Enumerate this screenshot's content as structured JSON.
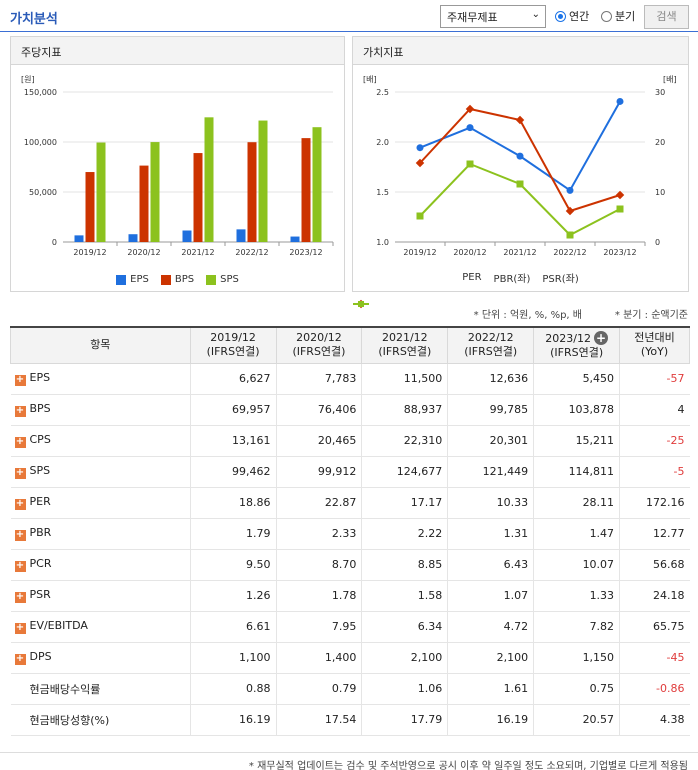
{
  "header": {
    "title": "가치분석",
    "select_value": "주재무제표",
    "radio_annual": "연간",
    "radio_quarter": "분기",
    "search_button": "검색"
  },
  "left_panel_title": "주당지표",
  "right_panel_title": "가치지표",
  "chart_data": [
    {
      "type": "bar",
      "categories": [
        "2019/12",
        "2020/12",
        "2021/12",
        "2022/12",
        "2023/12"
      ],
      "series": [
        {
          "name": "EPS",
          "values": [
            6627,
            7783,
            11500,
            12636,
            5450
          ],
          "color": "#1f6fde"
        },
        {
          "name": "BPS",
          "values": [
            69957,
            76406,
            88937,
            99785,
            103878
          ],
          "color": "#cc3300"
        },
        {
          "name": "SPS",
          "values": [
            99462,
            99912,
            124677,
            121449,
            114811
          ],
          "color": "#8cc21e"
        }
      ],
      "ylabel": "[원]",
      "ylim": [
        0,
        150000
      ],
      "yticks": [
        "0",
        "50,000",
        "100,000",
        "150,000"
      ],
      "grid": true,
      "legend": "bottom"
    },
    {
      "type": "line",
      "categories": [
        "2019/12",
        "2020/12",
        "2021/12",
        "2022/12",
        "2023/12"
      ],
      "series": [
        {
          "name": "PER",
          "axis": "right",
          "values": [
            18.86,
            22.87,
            17.17,
            10.33,
            28.11
          ],
          "color": "#1f6fde"
        },
        {
          "name": "PBR(좌)",
          "axis": "left",
          "values": [
            1.79,
            2.33,
            2.22,
            1.31,
            1.47
          ],
          "color": "#cc3300"
        },
        {
          "name": "PSR(좌)",
          "axis": "left",
          "values": [
            1.26,
            1.78,
            1.58,
            1.07,
            1.33
          ],
          "color": "#8cc21e"
        }
      ],
      "ylabel_left": "[배]",
      "ylabel_right": "[배]",
      "ylim_left": [
        1.0,
        2.5
      ],
      "ylim_right": [
        0,
        30
      ],
      "yticks_left": [
        "1.0",
        "1.5",
        "2.0",
        "2.5"
      ],
      "yticks_right": [
        "0",
        "10",
        "20",
        "30"
      ],
      "grid": true,
      "legend": "bottom"
    }
  ],
  "notes": {
    "unit": "* 단위 : 억원, %, %p, 배",
    "quarter": "* 분기 : 순액기준"
  },
  "table": {
    "header_item": "항목",
    "columns": [
      {
        "period": "2019/12",
        "basis": "(IFRS연결)"
      },
      {
        "period": "2020/12",
        "basis": "(IFRS연결)"
      },
      {
        "period": "2021/12",
        "basis": "(IFRS연결)"
      },
      {
        "period": "2022/12",
        "basis": "(IFRS연결)"
      },
      {
        "period": "2023/12",
        "basis": "(IFRS연결)"
      }
    ],
    "yoy_title": "전년대비",
    "yoy_sub": "(YoY)",
    "rows": [
      {
        "label": "EPS",
        "expand": true,
        "values": [
          "6,627",
          "7,783",
          "11,500",
          "12,636",
          "5,450"
        ],
        "yoy": "-57"
      },
      {
        "label": "BPS",
        "expand": true,
        "values": [
          "69,957",
          "76,406",
          "88,937",
          "99,785",
          "103,878"
        ],
        "yoy": "4"
      },
      {
        "label": "CPS",
        "expand": true,
        "values": [
          "13,161",
          "20,465",
          "22,310",
          "20,301",
          "15,211"
        ],
        "yoy": "-25"
      },
      {
        "label": "SPS",
        "expand": true,
        "values": [
          "99,462",
          "99,912",
          "124,677",
          "121,449",
          "114,811"
        ],
        "yoy": "-5"
      },
      {
        "label": "PER",
        "expand": true,
        "values": [
          "18.86",
          "22.87",
          "17.17",
          "10.33",
          "28.11"
        ],
        "yoy": "172.16"
      },
      {
        "label": "PBR",
        "expand": true,
        "values": [
          "1.79",
          "2.33",
          "2.22",
          "1.31",
          "1.47"
        ],
        "yoy": "12.77"
      },
      {
        "label": "PCR",
        "expand": true,
        "values": [
          "9.50",
          "8.70",
          "8.85",
          "6.43",
          "10.07"
        ],
        "yoy": "56.68"
      },
      {
        "label": "PSR",
        "expand": true,
        "values": [
          "1.26",
          "1.78",
          "1.58",
          "1.07",
          "1.33"
        ],
        "yoy": "24.18"
      },
      {
        "label": "EV/EBITDA",
        "expand": true,
        "values": [
          "6.61",
          "7.95",
          "6.34",
          "4.72",
          "7.82"
        ],
        "yoy": "65.75"
      },
      {
        "label": "DPS",
        "expand": true,
        "values": [
          "1,100",
          "1,400",
          "2,100",
          "2,100",
          "1,150"
        ],
        "yoy": "-45"
      },
      {
        "label": "현금배당수익률",
        "expand": false,
        "values": [
          "0.88",
          "0.79",
          "1.06",
          "1.61",
          "0.75"
        ],
        "yoy": "-0.86"
      },
      {
        "label": "현금배당성향(%)",
        "expand": false,
        "values": [
          "16.19",
          "17.54",
          "17.79",
          "16.19",
          "20.57"
        ],
        "yoy": "4.38"
      }
    ]
  },
  "footer": "* 재무실적 업데이트는 검수 및 주석반영으로 공시 이후 약 일주일 정도 소요되며, 기업별로 다르게 적용됨"
}
